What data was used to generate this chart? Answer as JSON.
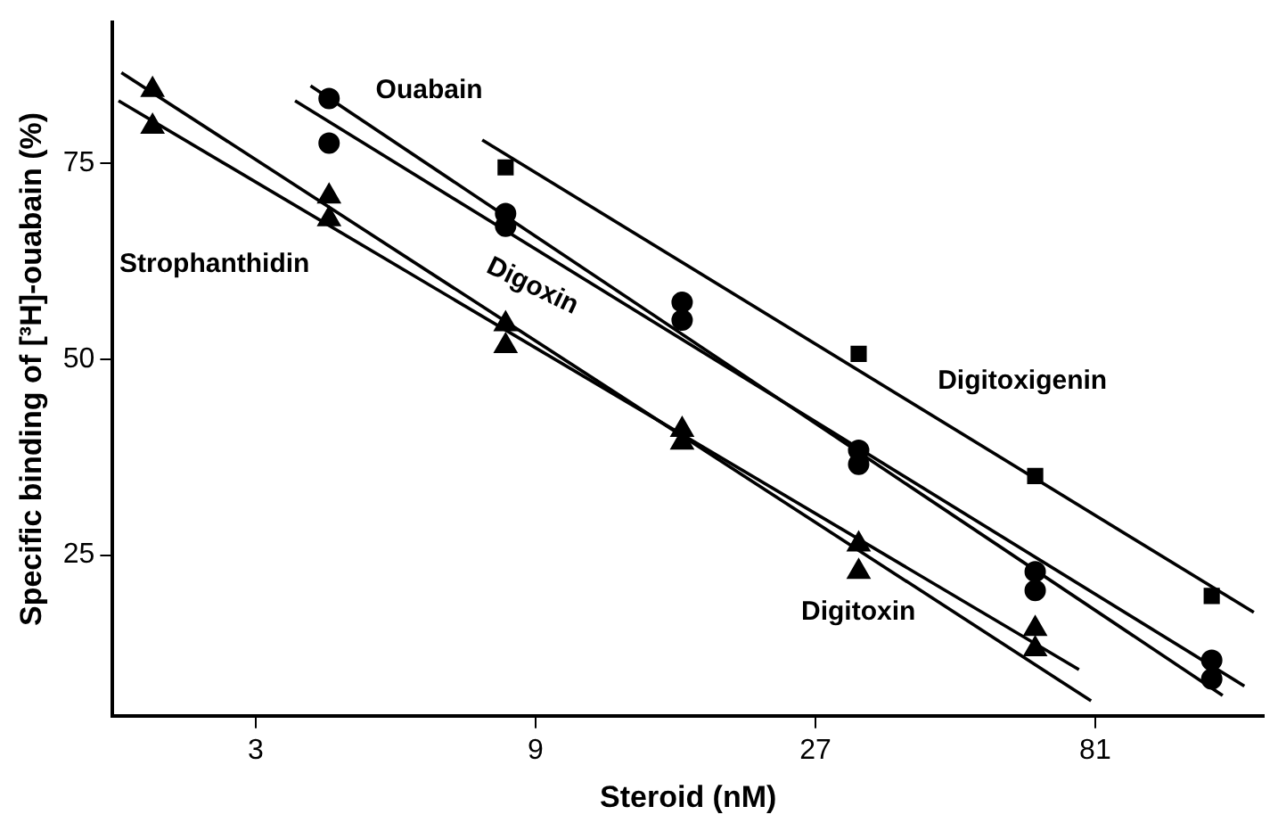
{
  "chart_data": {
    "type": "scatter",
    "xlabel": "Steroid (nM)",
    "ylabel": "Specific binding of [³H]-ouabain (%)",
    "log": "x",
    "xlim": [
      1.71,
      157
    ],
    "xticks": [
      3,
      9,
      27,
      81
    ],
    "ylim": [
      4.5,
      93
    ],
    "yticks": [
      25,
      50,
      75
    ],
    "grid": false,
    "legend": false,
    "series": [
      {
        "type": "scatter",
        "marker": "triangle",
        "color": "#000000",
        "x": [
          2,
          4,
          8,
          16,
          32,
          64
        ],
        "values": [
          84.4,
          70.8,
          54.5,
          41,
          22.9,
          13
        ]
      },
      {
        "type": "scatter",
        "marker": "triangle",
        "color": "#000000",
        "x": [
          2,
          4,
          8,
          16,
          32,
          64
        ],
        "values": [
          79.7,
          67.9,
          51.7,
          39.4,
          26.4,
          15.6
        ]
      },
      {
        "type": "scatter",
        "marker": "circle",
        "color": "#000000",
        "x": [
          4,
          8,
          16,
          32,
          64,
          128
        ],
        "values": [
          83.3,
          68.6,
          55,
          36.6,
          20.5,
          9.2
        ]
      },
      {
        "type": "scatter",
        "marker": "circle",
        "color": "#000000",
        "x": [
          4,
          8,
          16,
          32,
          64,
          128
        ],
        "values": [
          77.6,
          67,
          57.3,
          38.4,
          22.9,
          11.6
        ]
      },
      {
        "type": "scatter",
        "marker": "square",
        "color": "#000000",
        "x": [
          8,
          32,
          64,
          128
        ],
        "values": [
          74.5,
          50.7,
          35.1,
          19.8
        ]
      },
      {
        "type": "line",
        "name": "Digitoxin",
        "color": "#000000",
        "x": [
          1.77,
          79.7
        ],
        "values": [
          86.6,
          6.4
        ]
      },
      {
        "type": "line",
        "name": "Strophanthidin",
        "color": "#000000",
        "x": [
          1.75,
          76
        ],
        "values": [
          83,
          10.4
        ]
      },
      {
        "type": "line",
        "name": "Ouabain",
        "color": "#000000",
        "x": [
          3.72,
          133.6
        ],
        "values": [
          84.9,
          7.1
        ]
      },
      {
        "type": "line",
        "name": "Digoxin",
        "color": "#000000",
        "x": [
          3.5,
          145.5
        ],
        "values": [
          83,
          8.3
        ]
      },
      {
        "type": "line",
        "name": "Digitoxigenin",
        "color": "#000000",
        "x": [
          7.3,
          151
        ],
        "values": [
          78,
          17.7
        ]
      }
    ]
  }
}
